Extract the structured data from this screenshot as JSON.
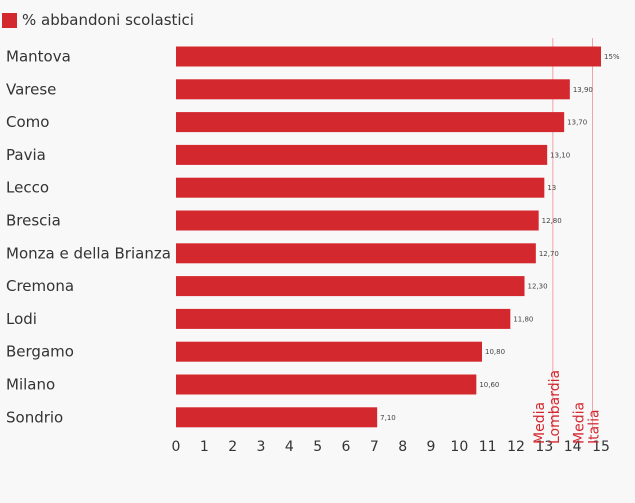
{
  "colors": {
    "bar": "#d4282f",
    "reference_line": "#f2a3a8"
  },
  "chart_data": {
    "type": "bar",
    "orientation": "horizontal",
    "legend": "top-left",
    "grid": false,
    "xlim": [
      0,
      15
    ],
    "ticks": [
      "0",
      "1",
      "2",
      "3",
      "4",
      "5",
      "6",
      "7",
      "8",
      "9",
      "10",
      "11",
      "12",
      "13",
      "14",
      "15"
    ],
    "series": [
      {
        "name": "% abbandoni scolastici",
        "categories": [
          "Mantova",
          "Varese",
          "Como",
          "Pavia",
          "Lecco",
          "Brescia",
          "Monza e della Brianza",
          "Cremona",
          "Lodi",
          "Bergamo",
          "Milano",
          "Sondrio"
        ],
        "values": [
          15,
          13.9,
          13.7,
          13.1,
          13,
          12.8,
          12.7,
          12.3,
          11.8,
          10.8,
          10.6,
          7.1
        ],
        "labels": [
          "15%",
          "13,90",
          "13,70",
          "13,10",
          "13",
          "12,80",
          "12,70",
          "12,30",
          "11,80",
          "10,80",
          "10,60",
          "7,10"
        ]
      }
    ],
    "reference_lines": [
      {
        "value": 13.3,
        "label": "Media Lombardia"
      },
      {
        "value": 14.7,
        "label": "Media Italia"
      }
    ]
  }
}
